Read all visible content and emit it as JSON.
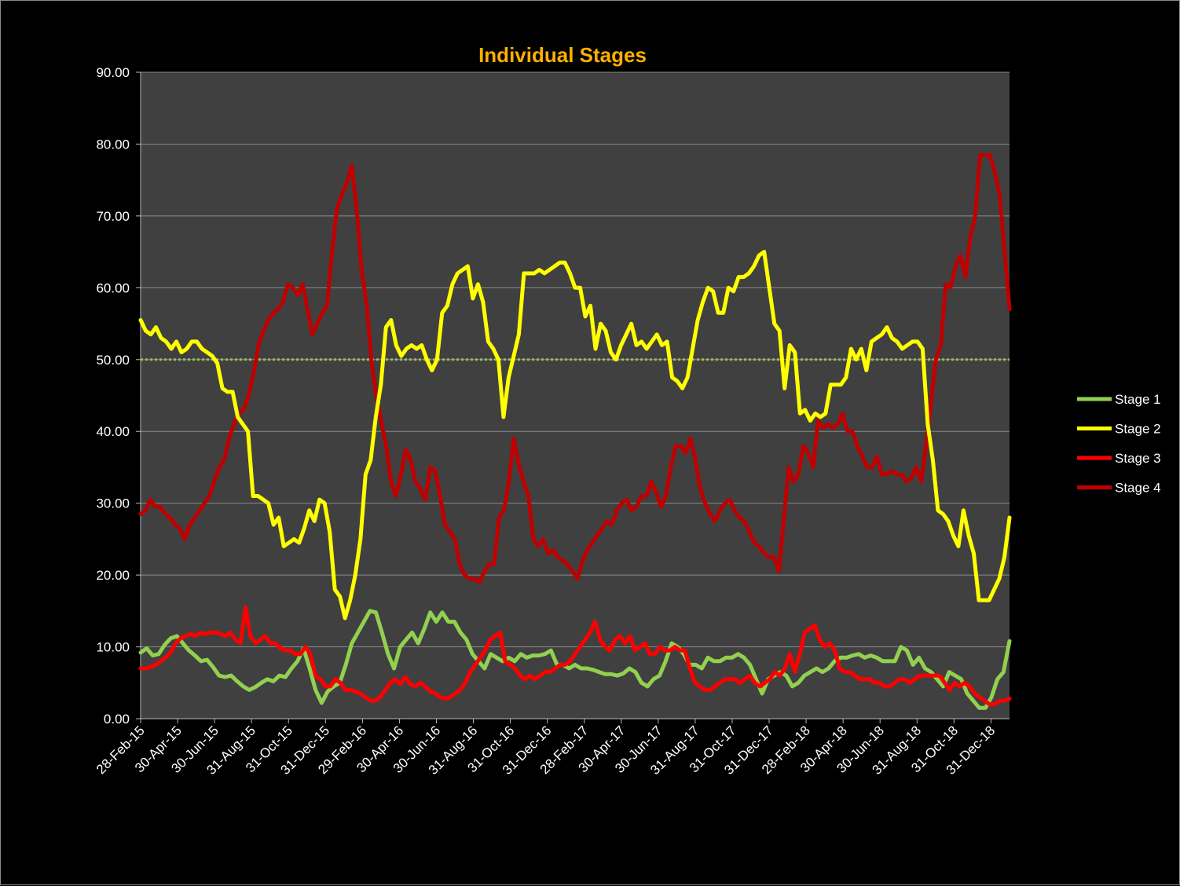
{
  "chart_data": {
    "type": "line",
    "title": "Individual Stages",
    "xlabel": "",
    "ylabel": "",
    "ylim": [
      0,
      90
    ],
    "ytick_labels": [
      "0.00",
      "10.00",
      "20.00",
      "30.00",
      "40.00",
      "50.00",
      "60.00",
      "70.00",
      "80.00",
      "90.00"
    ],
    "xtick_labels": [
      "28-Feb-15",
      "30-Apr-15",
      "30-Jun-15",
      "31-Aug-15",
      "31-Oct-15",
      "31-Dec-15",
      "29-Feb-16",
      "30-Apr-16",
      "30-Jun-16",
      "31-Aug-16",
      "31-Oct-16",
      "31-Dec-16",
      "28-Feb-17",
      "30-Apr-17",
      "30-Jun-17",
      "31-Aug-17",
      "31-Oct-17",
      "31-Dec-17",
      "28-Feb-18",
      "30-Apr-18",
      "30-Jun-18",
      "31-Aug-18",
      "31-Oct-18",
      "31-Dec-18"
    ],
    "grid": true,
    "legend_position": "right",
    "reference_line": {
      "y": 50,
      "color": "#9BBB59",
      "style": "dotted"
    },
    "colors": {
      "plot_bg": "#404040",
      "page_bg": "#000000",
      "gridline": "#8a8a8a"
    },
    "series": [
      {
        "name": "Stage 1",
        "color": "#92D050",
        "values": [
          9.2,
          9.8,
          8.8,
          9.0,
          10.3,
          11.2,
          11.5,
          10.5,
          9.5,
          8.8,
          8.0,
          8.2,
          7.2,
          6.0,
          5.8,
          6.0,
          5.2,
          4.5,
          4.0,
          4.4,
          5.0,
          5.5,
          5.2,
          6.0,
          5.8,
          7.0,
          8.0,
          9.8,
          7.0,
          4.0,
          2.2,
          3.8,
          4.5,
          5.0,
          7.5,
          10.5,
          12.0,
          13.5,
          15.0,
          14.8,
          12.0,
          9.0,
          7.0,
          10.0,
          11.0,
          12.0,
          10.5,
          12.5,
          14.8,
          13.5,
          14.8,
          13.5,
          13.5,
          12.0,
          11.0,
          9.0,
          8.0,
          7.0,
          9.0,
          8.5,
          8.0,
          8.5,
          8.0,
          9.0,
          8.5,
          8.8,
          8.8,
          9.0,
          9.5,
          7.5,
          7.5,
          7.0,
          7.5,
          7.0,
          7.0,
          6.8,
          6.5,
          6.2,
          6.2,
          6.0,
          6.3,
          7.0,
          6.5,
          5.0,
          4.5,
          5.5,
          6.0,
          8.0,
          10.5,
          10.0,
          9.0,
          7.5,
          7.5,
          7.0,
          8.5,
          8.0,
          8.0,
          8.5,
          8.5,
          9.0,
          8.5,
          7.5,
          5.5,
          3.5,
          5.5,
          6.0,
          6.5,
          6.0,
          4.5,
          5.0,
          6.0,
          6.5,
          7.0,
          6.5,
          7.0,
          8.0,
          8.5,
          8.5,
          8.8,
          9.0,
          8.5,
          8.8,
          8.5,
          8.0,
          8.0,
          8.0,
          10.0,
          9.5,
          7.5,
          8.5,
          7.0,
          6.5,
          5.5,
          4.5,
          6.5,
          6.0,
          5.5,
          3.5,
          2.5,
          1.5,
          1.5,
          3.0,
          5.5,
          6.5,
          10.8
        ]
      },
      {
        "name": "Stage 2",
        "color": "#FFFF00",
        "values": [
          55.5,
          54.0,
          53.5,
          54.5,
          53.0,
          52.5,
          51.5,
          52.5,
          51.0,
          51.5,
          52.5,
          52.5,
          51.5,
          51.0,
          50.5,
          49.5,
          46.0,
          45.5,
          45.5,
          42.0,
          41.0,
          40.0,
          31.0,
          31.0,
          30.5,
          30.0,
          27.0,
          28.0,
          24.0,
          24.5,
          25.0,
          24.5,
          26.5,
          29.0,
          27.5,
          30.5,
          30.0,
          26.0,
          18.0,
          17.0,
          14.0,
          16.5,
          20.0,
          25.0,
          34.0,
          36.0,
          42.0,
          46.5,
          54.5,
          55.5,
          52.0,
          50.5,
          51.5,
          52.0,
          51.5,
          52.0,
          50.0,
          48.5,
          50.0,
          56.5,
          57.5,
          60.5,
          62.0,
          62.5,
          63.0,
          58.5,
          60.5,
          58.0,
          52.5,
          51.5,
          50.0,
          42.0,
          47.5,
          50.5,
          53.5,
          62.0,
          62.0,
          62.0,
          62.5,
          62.0,
          62.5,
          63.0,
          63.5,
          63.5,
          62.0,
          60.0,
          60.0,
          56.0,
          57.5,
          51.5,
          55.0,
          54.0,
          51.0,
          50.0,
          52.0,
          53.5,
          55.0,
          52.0,
          52.5,
          51.5,
          52.5,
          53.5,
          52.0,
          52.5,
          47.5,
          47.0,
          46.0,
          47.5,
          51.5,
          55.5,
          58.0,
          60.0,
          59.5,
          56.5,
          56.5,
          60.0,
          59.5,
          61.5,
          61.5,
          62.0,
          63.0,
          64.5,
          65.0,
          60.0,
          55.0,
          54.0,
          46.0,
          52.0,
          51.0,
          42.5,
          43.0,
          41.5,
          42.5,
          42.0,
          42.5,
          46.5,
          46.5,
          46.5,
          47.5,
          51.5,
          50.0,
          51.5,
          48.5,
          52.5,
          53.0,
          53.5,
          54.5,
          53.0,
          52.5,
          51.5,
          52.0,
          52.5,
          52.5,
          51.5,
          41.0,
          36.0,
          29.0,
          28.5,
          27.5,
          25.5,
          24.0,
          29.0,
          25.5,
          23.0,
          16.5,
          16.5,
          16.5,
          18.0,
          19.5,
          22.5,
          28.0
        ]
      },
      {
        "name": "Stage 3",
        "color": "#FF0000",
        "values": [
          7.0,
          7.0,
          7.2,
          7.5,
          8.0,
          8.5,
          9.2,
          10.5,
          11.2,
          11.5,
          11.8,
          11.5,
          12.0,
          11.8,
          12.0,
          12.0,
          11.8,
          11.5,
          12.0,
          11.0,
          10.5,
          15.5,
          11.5,
          10.5,
          11.0,
          11.5,
          10.5,
          10.5,
          9.8,
          9.5,
          9.5,
          9.0,
          9.0,
          10.0,
          9.0,
          6.0,
          5.5,
          4.5,
          4.5,
          5.5,
          5.0,
          4.0,
          4.0,
          3.8,
          3.5,
          3.0,
          2.5,
          2.5,
          3.0,
          4.0,
          5.0,
          5.5,
          4.8,
          5.8,
          4.8,
          4.5,
          5.0,
          4.5,
          3.8,
          3.5,
          3.0,
          2.8,
          3.0,
          3.5,
          4.0,
          5.0,
          6.5,
          7.5,
          8.5,
          9.5,
          11.0,
          11.5,
          12.0,
          8.0,
          7.5,
          7.0,
          6.0,
          5.5,
          6.0,
          5.5,
          6.0,
          6.5,
          6.5,
          7.0,
          7.5,
          7.5,
          8.0,
          9.0,
          10.0,
          11.0,
          12.0,
          13.5,
          11.0,
          10.0,
          9.5,
          11.0,
          11.5,
          10.5,
          11.5,
          9.5,
          10.0,
          10.5,
          9.0,
          9.0,
          10.0,
          9.5,
          9.5,
          10.0,
          9.5,
          9.5,
          7.0,
          5.0,
          4.5,
          4.0,
          4.0,
          4.5,
          5.0,
          5.5,
          5.5,
          5.5,
          5.0,
          5.5,
          6.0,
          5.0,
          4.5,
          5.0,
          5.5,
          6.5,
          6.0,
          7.0,
          9.0,
          6.5,
          9.0,
          12.0,
          12.5,
          13.0,
          11.0,
          10.0,
          10.5,
          9.5,
          7.0,
          6.5,
          6.5,
          6.0,
          5.5,
          5.5,
          5.5,
          5.0,
          5.0,
          4.5,
          4.5,
          5.0,
          5.5,
          5.5,
          5.0,
          5.5,
          6.0,
          6.0,
          6.0,
          6.0,
          6.0,
          5.0,
          4.0,
          5.0,
          4.5,
          5.0,
          4.5,
          3.5,
          3.0,
          2.5,
          2.0,
          2.0,
          2.5,
          2.5,
          2.8
        ]
      },
      {
        "name": "Stage 4",
        "color": "#C00000",
        "values": [
          28.5,
          29.0,
          30.5,
          29.5,
          29.5,
          28.5,
          28.0,
          27.0,
          26.5,
          25.0,
          27.0,
          28.0,
          29.0,
          30.0,
          31.0,
          33.0,
          35.0,
          36.0,
          39.0,
          41.0,
          42.5,
          43.0,
          45.0,
          48.0,
          52.0,
          54.0,
          55.5,
          56.5,
          57.0,
          58.0,
          60.5,
          60.0,
          59.0,
          60.5,
          57.0,
          53.5,
          55.0,
          56.5,
          57.5,
          65.0,
          71.0,
          73.0,
          74.5,
          77.0,
          71.0,
          62.5,
          58.0,
          50.0,
          45.0,
          41.5,
          38.0,
          33.0,
          31.0,
          34.0,
          37.5,
          36.0,
          33.0,
          32.0,
          30.5,
          35.0,
          34.5,
          31.0,
          27.0,
          26.0,
          25.0,
          21.5,
          20.0,
          19.5,
          19.5,
          19.0,
          20.5,
          21.5,
          21.5,
          28.0,
          29.0,
          33.0,
          39.0,
          35.5,
          33.0,
          31.0,
          25.0,
          24.0,
          25.0,
          23.0,
          23.5,
          22.5,
          22.0,
          21.5,
          20.5,
          19.5,
          22.0,
          23.5,
          24.5,
          25.5,
          26.5,
          27.5,
          27.0,
          29.0,
          30.0,
          30.5,
          29.0,
          29.5,
          31.0,
          31.0,
          33.0,
          31.5,
          29.5,
          31.0,
          35.0,
          38.0,
          38.0,
          37.0,
          39.0,
          36.0,
          32.0,
          30.0,
          28.5,
          27.5,
          29.0,
          30.0,
          30.5,
          29.0,
          28.0,
          27.5,
          26.0,
          24.5,
          24.0,
          23.0,
          22.5,
          22.5,
          20.5,
          27.5,
          35.0,
          33.0,
          34.0,
          38.0,
          37.0,
          35.0,
          41.5,
          40.5,
          41.0,
          40.5,
          41.0,
          42.5,
          40.0,
          40.0,
          38.0,
          36.5,
          35.0,
          35.0,
          36.5,
          34.0,
          34.0,
          34.5,
          34.0,
          34.0,
          33.0,
          33.5,
          35.0,
          33.0,
          38.0,
          44.0,
          50.0,
          52.0,
          60.5,
          60.0,
          63.0,
          64.5,
          61.5,
          67.0,
          70.0,
          78.5,
          78.5,
          78.5,
          76.0,
          73.0,
          65.0,
          57.0
        ]
      }
    ]
  }
}
